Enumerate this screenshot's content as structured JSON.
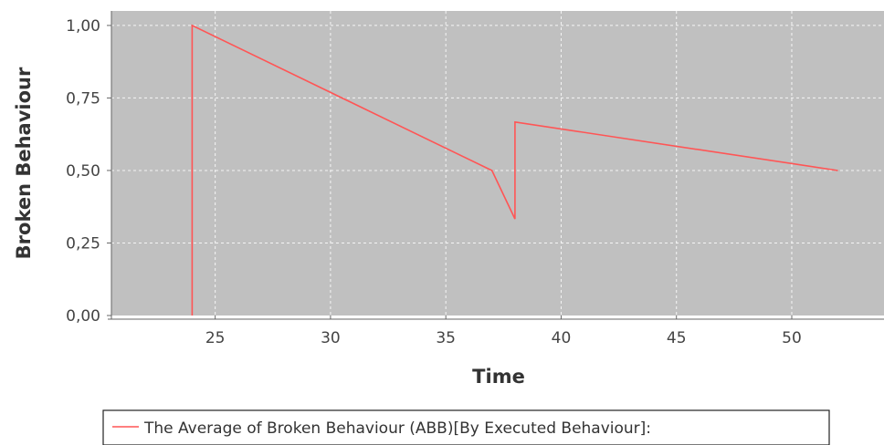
{
  "chart_data": {
    "type": "line",
    "title": "",
    "xlabel": "Time",
    "ylabel": "Broken Behaviour",
    "xlim": [
      20.5,
      54
    ],
    "ylim": [
      0,
      1.05
    ],
    "x_ticks": [
      25,
      30,
      35,
      40,
      45,
      50
    ],
    "x_tick_labels": [
      "25",
      "30",
      "35",
      "40",
      "45",
      "50"
    ],
    "y_ticks": [
      0,
      0.25,
      0.5,
      0.75,
      1.0
    ],
    "y_tick_labels": [
      "0,00",
      "0,25",
      "0,50",
      "0,75",
      "1,00"
    ],
    "grid": true,
    "legend_position": "bottom",
    "background_color": "#c0c0c0",
    "series": [
      {
        "name": "The Average of Broken Behaviour (ABB)[By Executed Behaviour]:",
        "color": "#ff5555",
        "x": [
          24,
          24,
          37,
          38,
          38,
          52
        ],
        "y": [
          0,
          1.0,
          0.5,
          0.333,
          0.667,
          0.5
        ]
      }
    ]
  }
}
